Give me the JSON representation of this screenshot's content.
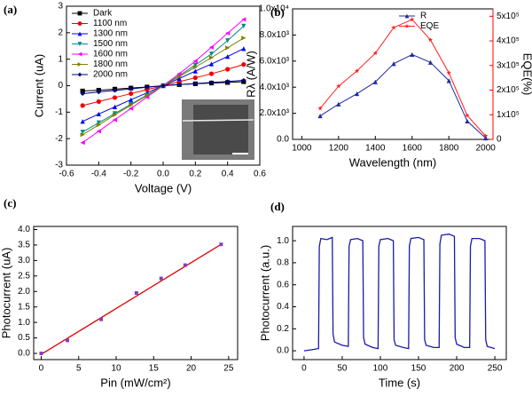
{
  "chart_data": [
    {
      "type": "line",
      "label": "(a)",
      "xlabel": "Voltage (V)",
      "ylabel": "Current (uA)",
      "legend": "upper left",
      "xlim": [
        -0.6,
        0.6
      ],
      "xticks": [
        -0.6,
        -0.4,
        -0.2,
        {
          "value": 0,
          "label": "0.0"
        },
        0.2,
        0.4,
        0.6
      ],
      "ylim": [
        -3,
        3
      ],
      "yticks": [
        -3,
        -2,
        -1,
        0,
        1,
        2,
        3
      ],
      "x": [
        -0.5,
        -0.4,
        -0.3,
        -0.2,
        -0.1,
        0,
        0.1,
        0.2,
        0.3,
        0.4,
        0.5
      ],
      "series": [
        {
          "name": "Dark",
          "color": "#000000",
          "marker": "square",
          "values": [
            -0.2,
            -0.17,
            -0.13,
            -0.09,
            -0.05,
            0,
            0.04,
            0.07,
            0.1,
            0.12,
            0.15
          ]
        },
        {
          "name": "1100 nm",
          "color": "#ee0000",
          "marker": "circle",
          "values": [
            -0.75,
            -0.6,
            -0.45,
            -0.3,
            -0.15,
            0,
            0.15,
            0.3,
            0.45,
            0.62,
            0.8
          ]
        },
        {
          "name": "1300 nm",
          "color": "#0000ee",
          "marker": "triangle-up",
          "values": [
            -1.35,
            -1.07,
            -0.8,
            -0.53,
            -0.27,
            0,
            0.27,
            0.55,
            0.82,
            1.1,
            1.4
          ]
        },
        {
          "name": "1500 nm",
          "color": "#008b8b",
          "marker": "triangle-down",
          "values": [
            -1.75,
            -1.4,
            -1.05,
            -0.7,
            -0.35,
            0,
            0.38,
            0.78,
            1.2,
            1.7,
            2.25
          ]
        },
        {
          "name": "1600 nm",
          "color": "#ff00ff",
          "marker": "triangle-left",
          "values": [
            -2.15,
            -1.72,
            -1.29,
            -0.86,
            -0.43,
            0,
            0.45,
            0.93,
            1.45,
            1.98,
            2.5
          ]
        },
        {
          "name": "1800 nm",
          "color": "#808000",
          "marker": "triangle-right",
          "values": [
            -1.85,
            -1.48,
            -1.1,
            -0.73,
            -0.37,
            0,
            0.34,
            0.7,
            1.06,
            1.43,
            1.8
          ]
        },
        {
          "name": "2000 nm",
          "color": "#000080",
          "marker": "diamond",
          "values": [
            -0.3,
            -0.24,
            -0.18,
            -0.12,
            -0.06,
            0,
            0.04,
            0.08,
            0.12,
            0.16,
            0.2
          ]
        }
      ]
    },
    {
      "type": "line",
      "label": "(b)",
      "xlabel": "Wavelength (nm)",
      "ylabel": "Rλ (A/W)",
      "y2label": "EQE(%)",
      "y2color": "#ff0000",
      "legend": "upper left",
      "xlim": [
        950,
        2040
      ],
      "xticks": [
        1000,
        1200,
        1400,
        1600,
        1800,
        2000
      ],
      "ylim": [
        0,
        10000
      ],
      "yticks": [
        {
          "value": 0,
          "label": "0.0"
        },
        {
          "value": 2000,
          "label": "2.0x10³"
        },
        {
          "value": 4000,
          "label": "4.0x10³"
        },
        {
          "value": 6000,
          "label": "6.0x10³"
        },
        {
          "value": 8000,
          "label": "8.0x10³"
        },
        {
          "value": 10000,
          "label": "1.0x10⁴"
        }
      ],
      "y2lim": [
        0,
        530000
      ],
      "y2ticks": [
        0,
        {
          "value": 100000,
          "label": "1x10⁵"
        },
        {
          "value": 200000,
          "label": "2x10⁵"
        },
        {
          "value": 300000,
          "label": "3x10⁵"
        },
        {
          "value": 400000,
          "label": "4x10⁵"
        },
        {
          "value": 500000,
          "label": "5x10⁵"
        }
      ],
      "x": [
        1100,
        1200,
        1300,
        1400,
        1500,
        1600,
        1700,
        1800,
        1900,
        2000
      ],
      "series": [
        {
          "name": "R",
          "color": "#1f2aa0",
          "marker": "triangle-up",
          "values": [
            1800,
            2700,
            3500,
            4400,
            5800,
            6500,
            5900,
            4500,
            1400,
            100
          ]
        },
        {
          "name": "EQE",
          "color": "#ff2020",
          "marker": "star",
          "axis": "y2",
          "values": [
            126000,
            216000,
            278000,
            350000,
            454000,
            487000,
            404000,
            270000,
            97000,
            14000
          ]
        }
      ]
    },
    {
      "type": "scatter",
      "label": "(c)",
      "xlabel": "Pin (mW/cm²)",
      "ylabel": "Photocurrent (uA)",
      "xlim": [
        -1,
        26.2
      ],
      "xticks": [
        0,
        5,
        10,
        15,
        20,
        25
      ],
      "ylim": [
        -0.2,
        4.1
      ],
      "yticks": [
        {
          "value": 0,
          "label": "0.0"
        },
        0.5,
        {
          "value": 1,
          "label": "1.0"
        },
        1.5,
        {
          "value": 2,
          "label": "2.0"
        },
        2.5,
        {
          "value": 3,
          "label": "3.0"
        },
        3.5,
        {
          "value": 4,
          "label": "4.0"
        }
      ],
      "fit": {
        "color": "#e00000",
        "x": [
          0,
          24
        ],
        "values": [
          -0.03,
          3.52
        ]
      },
      "series": [
        {
          "color": "#8040c0",
          "marker": "square",
          "x": [
            0,
            3.5,
            8,
            12.7,
            16,
            19.2,
            24
          ],
          "values": [
            0,
            0.42,
            1.1,
            1.95,
            2.42,
            2.85,
            3.52
          ]
        }
      ]
    },
    {
      "type": "line",
      "label": "(d)",
      "xlabel": "Time (s)",
      "ylabel": "Photocurrent (a.u.)",
      "xlim": [
        -15,
        265
      ],
      "xticks": [
        0,
        50,
        100,
        150,
        200,
        250
      ],
      "ylim": [
        -0.08,
        1.13
      ],
      "yticks": [
        {
          "value": 0,
          "label": "0.0"
        },
        0.2,
        0.4,
        0.6,
        0.8,
        {
          "value": 1,
          "label": "1.0"
        }
      ],
      "series": [
        {
          "color": "#1a1aa8",
          "marker": "none",
          "x": [
            0,
            10,
            19,
            20,
            22,
            30,
            37,
            38,
            40,
            50,
            58,
            59,
            61,
            70,
            77,
            78,
            80,
            90,
            97,
            98,
            100,
            110,
            117,
            118,
            120,
            130,
            137,
            138,
            140,
            150,
            157,
            158,
            160,
            170,
            177,
            178,
            180,
            190,
            197,
            198,
            200,
            210,
            217,
            218,
            220,
            230,
            237,
            238,
            240,
            250
          ],
          "values": [
            0,
            0.01,
            0.02,
            0.95,
            1.02,
            1.01,
            1.03,
            0.15,
            0.08,
            0.05,
            0.04,
            0.95,
            1.01,
            1.02,
            1,
            0.12,
            0.06,
            0.03,
            0.02,
            0.95,
            1.01,
            1.02,
            1,
            0.1,
            0.05,
            0.03,
            0.02,
            0.95,
            1.02,
            1.03,
            1.01,
            0.1,
            0.05,
            0.03,
            0.03,
            0.97,
            1.05,
            1.06,
            1.04,
            0.12,
            0.06,
            0.03,
            0.03,
            0.95,
            1.02,
            1.02,
            1,
            0.1,
            0.04,
            0.02
          ]
        }
      ]
    }
  ]
}
